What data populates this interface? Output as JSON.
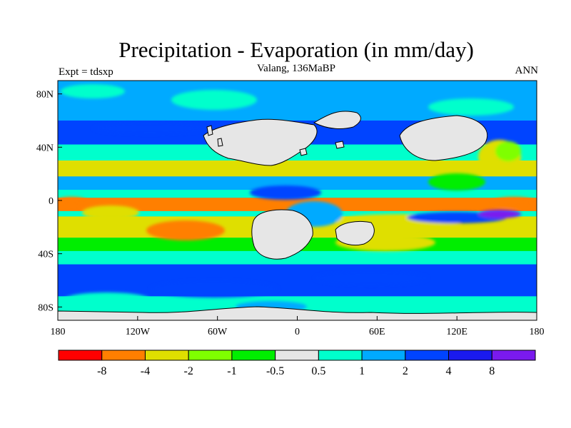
{
  "title": "Precipitation - Evaporation (in mm/day)",
  "subtitle": "Valang, 136MaBP",
  "left_header": "Expt = tdsxp",
  "right_header": "ANN",
  "chart_data": {
    "type": "heatmap",
    "projection": "cylindrical equidistant",
    "xlim": [
      -180,
      180
    ],
    "ylim": [
      -90,
      90
    ],
    "x_ticks": [
      {
        "value": -180,
        "label": "180"
      },
      {
        "value": -120,
        "label": "120W"
      },
      {
        "value": -60,
        "label": "60W"
      },
      {
        "value": 0,
        "label": "0"
      },
      {
        "value": 60,
        "label": "60E"
      },
      {
        "value": 120,
        "label": "120E"
      },
      {
        "value": 180,
        "label": "180"
      }
    ],
    "y_ticks": [
      {
        "value": 80,
        "label": "80N"
      },
      {
        "value": 40,
        "label": "40N"
      },
      {
        "value": 0,
        "label": "0"
      },
      {
        "value": -40,
        "label": "40S"
      },
      {
        "value": -80,
        "label": "80S"
      }
    ],
    "colorbar": {
      "labels": [
        "-8",
        "-4",
        "-2",
        "-1",
        "-0.5",
        "0.5",
        "1",
        "2",
        "4",
        "8"
      ],
      "colors": [
        "#ff0000",
        "#ff7f00",
        "#dfdf00",
        "#7fff00",
        "#00ee00",
        "#e6e6e6",
        "#00ffcc",
        "#00aaff",
        "#0044ff",
        "#1a1aee",
        "#7a1aee"
      ]
    },
    "land_color": "#e6e6e6",
    "zonal_bands": [
      {
        "lat": [
          60,
          90
        ],
        "range_mm_day": "1 to 2"
      },
      {
        "lat": [
          42,
          60
        ],
        "range_mm_day": "2 to 4"
      },
      {
        "lat": [
          30,
          42
        ],
        "range_mm_day": "0.5 to 2"
      },
      {
        "lat": [
          18,
          30
        ],
        "range_mm_day": "-4 to -1"
      },
      {
        "lat": [
          8,
          18
        ],
        "range_mm_day": "1 to 4"
      },
      {
        "lat": [
          2,
          8
        ],
        "range_mm_day": "0.5 to 1"
      },
      {
        "lat": [
          -8,
          2
        ],
        "range_mm_day": "-8 to -4"
      },
      {
        "lat": [
          -12,
          -8
        ],
        "range_mm_day": "0.5 to 2"
      },
      {
        "lat": [
          -28,
          -12
        ],
        "range_mm_day": "-4 to -2"
      },
      {
        "lat": [
          -38,
          -28
        ],
        "range_mm_day": "-1 to 0.5"
      },
      {
        "lat": [
          -48,
          -38
        ],
        "range_mm_day": "0.5 to 2"
      },
      {
        "lat": [
          -72,
          -48
        ],
        "range_mm_day": "2 to 4"
      },
      {
        "lat": [
          -90,
          -72
        ],
        "range_mm_day": "0.5 to 2"
      }
    ],
    "grid": false,
    "legend": "bottom"
  }
}
